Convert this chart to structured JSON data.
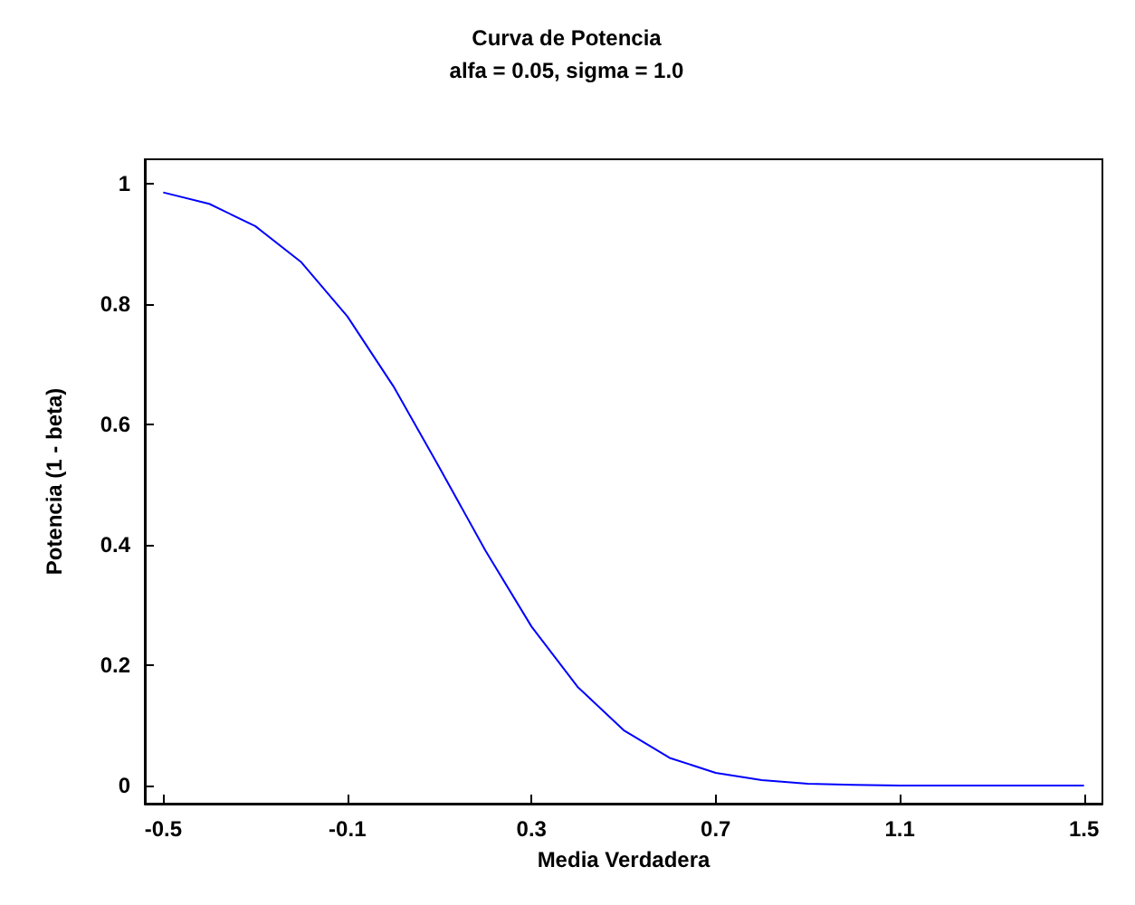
{
  "chart_data": {
    "type": "line",
    "title": "Curva de Potencia",
    "subtitle": "alfa = 0.05, sigma = 1.0",
    "xlabel": "Media Verdadera",
    "ylabel": "Potencia (1 - beta)",
    "x": [
      -0.5,
      -0.4,
      -0.3,
      -0.2,
      -0.1,
      0,
      0.1,
      0.2,
      0.3,
      0.4,
      0.5,
      0.6,
      0.7,
      0.8,
      0.9,
      1.0,
      1.1,
      1.2,
      1.3,
      1.4,
      1.5
    ],
    "series": [
      {
        "color": "#0000ff",
        "values": [
          0.985,
          0.966,
          0.929,
          0.869,
          0.779,
          0.663,
          0.528,
          0.39,
          0.264,
          0.164,
          0.092,
          0.046,
          0.021,
          0.009,
          0.003,
          0.001,
          0,
          0,
          0,
          0,
          0
        ]
      }
    ],
    "xlim": [
      -0.54,
      1.54
    ],
    "ylim": [
      -0.03,
      1.04
    ],
    "xticks": [
      -0.5,
      -0.1,
      0.3,
      0.7,
      1.1,
      1.5
    ],
    "yticks": [
      0,
      0.2,
      0.4,
      0.6,
      0.8,
      1
    ],
    "grid": false,
    "marker": "none",
    "line_style": "solid"
  }
}
